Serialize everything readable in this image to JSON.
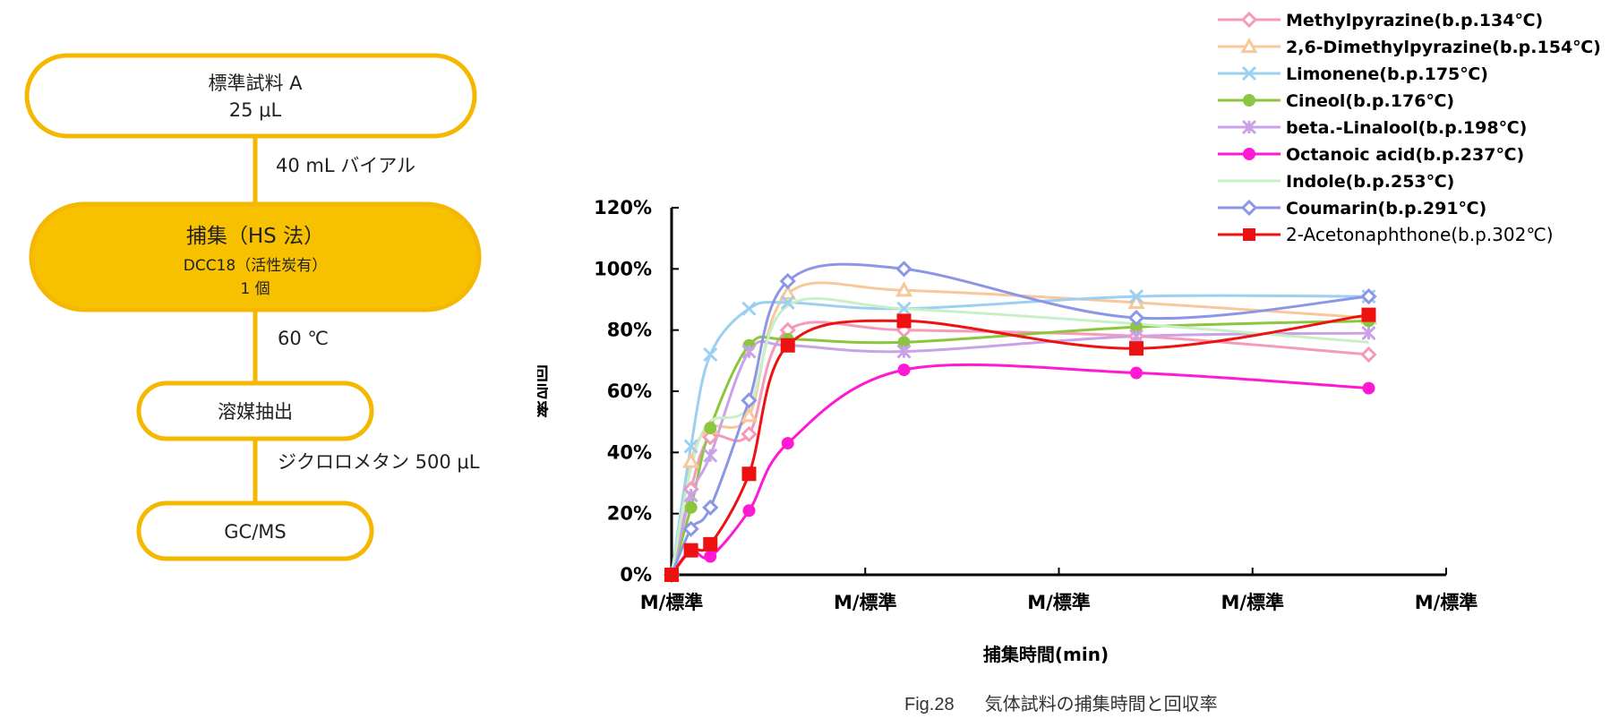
{
  "flowchart": {
    "step1": {
      "title": "標準試料 A",
      "amount": "25 μL"
    },
    "conn1": "40 mL バイアル",
    "step2": {
      "title": "捕集（HS 法）",
      "sub": "DCC18（活性炭有）",
      "count": "1 個"
    },
    "conn2": "60 ℃",
    "step3": {
      "title": "溶媒抽出"
    },
    "conn3": "ジクロロメタン 500 μL",
    "step4": {
      "title": "GC/MS"
    },
    "colors": {
      "outline": "#f5b800",
      "fill_highlight": "#f8c100"
    }
  },
  "caption": {
    "fig": "Fig.28",
    "text": "気体試料の捕集時間と回収率"
  },
  "chart_data": {
    "type": "line",
    "ylabel": "回収率",
    "xlabel": "捕集時間(min)",
    "yticks": [
      "0%",
      "20%",
      "40%",
      "60%",
      "80%",
      "100%",
      "120%"
    ],
    "xticks": [
      "M/標準",
      "M/標準",
      "M/標準",
      "M/標準",
      "M/標準"
    ],
    "ylim": [
      0,
      120
    ],
    "xlim": [
      0,
      80
    ],
    "legend_position": "top-right",
    "grid": false,
    "series": [
      {
        "name": "Methylpyrazine(b.p.134℃)",
        "color": "#f59ab8",
        "marker": "diamond-open",
        "x": [
          0,
          2,
          4,
          8,
          12,
          24,
          48,
          72
        ],
        "y": [
          0,
          28,
          45,
          46,
          80,
          80,
          78,
          72
        ]
      },
      {
        "name": "2,6-Dimethylpyrazine(b.p.154℃)",
        "color": "#f9c89a",
        "marker": "triangle-open",
        "x": [
          0,
          2,
          4,
          8,
          12,
          24,
          48,
          72
        ],
        "y": [
          0,
          37,
          48,
          52,
          92,
          93,
          89,
          84
        ]
      },
      {
        "name": "Limonene(b.p.175℃)",
        "color": "#9cd0f0",
        "marker": "x",
        "x": [
          0,
          2,
          4,
          8,
          12,
          24,
          48,
          72
        ],
        "y": [
          0,
          42,
          72,
          87,
          89,
          87,
          91,
          91
        ]
      },
      {
        "name": "Cineol(b.p.176℃)",
        "color": "#8cc63f",
        "marker": "dot",
        "x": [
          0,
          2,
          4,
          8,
          12,
          24,
          48,
          72
        ],
        "y": [
          0,
          22,
          48,
          75,
          77,
          76,
          81,
          83
        ]
      },
      {
        "name": "beta.-Linalool(b.p.198℃)",
        "color": "#c9a2e8",
        "marker": "asterisk",
        "x": [
          0,
          2,
          4,
          8,
          12,
          24,
          48,
          72
        ],
        "y": [
          0,
          26,
          39,
          73,
          75,
          73,
          78,
          79
        ]
      },
      {
        "name": "Octanoic acid(b.p.237℃)",
        "color": "#ff19d2",
        "marker": "dot",
        "x": [
          0,
          2,
          4,
          8,
          12,
          24,
          48,
          72
        ],
        "y": [
          0,
          8,
          6,
          21,
          43,
          67,
          66,
          61
        ]
      },
      {
        "name": "Indole(b.p.253℃)",
        "color": "#c8f0c8",
        "marker": "none",
        "x": [
          0,
          2,
          4,
          8,
          12,
          24,
          48,
          72
        ],
        "y": [
          0,
          35,
          50,
          55,
          88,
          87,
          82,
          76
        ]
      },
      {
        "name": "Coumarin(b.p.291℃)",
        "color": "#8c96e6",
        "marker": "diamond-open",
        "x": [
          0,
          2,
          4,
          8,
          12,
          24,
          48,
          72
        ],
        "y": [
          0,
          15,
          22,
          57,
          96,
          100,
          84,
          91
        ]
      },
      {
        "name": "2-Acetonaphthone(b.p.302℃)",
        "color": "#ee1111",
        "marker": "square",
        "x": [
          0,
          2,
          4,
          8,
          12,
          24,
          48,
          72
        ],
        "y": [
          0,
          8,
          10,
          33,
          75,
          83,
          74,
          85
        ]
      }
    ]
  }
}
